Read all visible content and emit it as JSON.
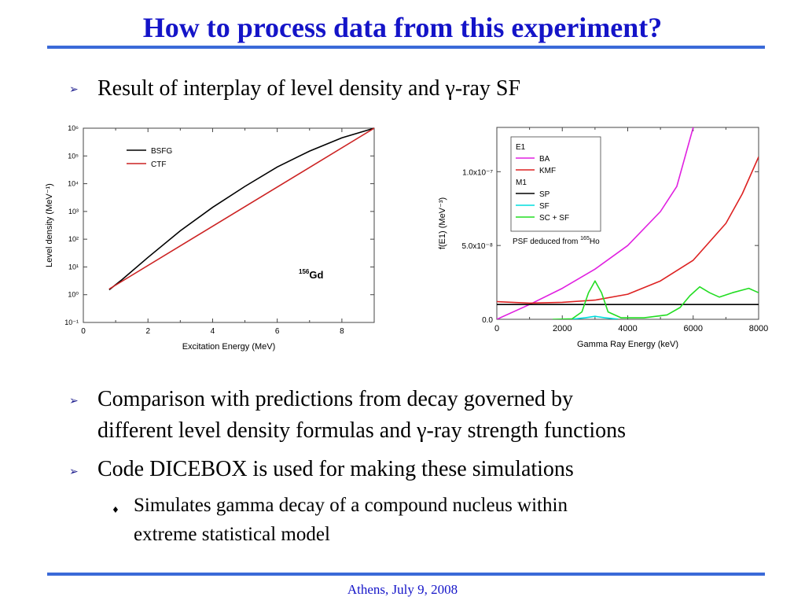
{
  "slide": {
    "title": "How to process data from this experiment?",
    "bullet1": "Result of interplay of level density and γ-ray SF",
    "bullet2_line1": "Comparison with predictions from decay governed by",
    "bullet2_line2": "different level density formulas and γ-ray strength functions",
    "bullet3": "Code DICEBOX is used for making these simulations",
    "sub1_line1": "Simulates gamma decay of a compound nucleus within",
    "sub1_line2": "extreme statistical model",
    "footer": "Athens, July 9, 2008",
    "bullet_icon": "arrow-bullet-icon",
    "sub_bullet_icon": "diamond-bullet-icon",
    "colors": {
      "title": "#1414c8",
      "rule": "#3a6ad8",
      "footer": "#1414c8"
    }
  },
  "chart_data": [
    {
      "type": "line",
      "xlabel": "Excitation Energy (MeV)",
      "ylabel": "Level density (MeV⁻¹)",
      "annotation": "156Gd",
      "xlim": [
        0,
        9
      ],
      "ylim": [
        0.1,
        1000000
      ],
      "yscale": "log",
      "x_ticks": [
        "0",
        "2",
        "4",
        "6",
        "8"
      ],
      "y_ticks": [
        "10⁻¹",
        "10⁰",
        "10¹",
        "10²",
        "10³",
        "10⁴",
        "10⁵",
        "10⁶"
      ],
      "legend_position": "top-left",
      "series": [
        {
          "name": "BSFG",
          "color": "#000000",
          "x": [
            0.8,
            1.2,
            2,
            3,
            4,
            5,
            6,
            7,
            8,
            9
          ],
          "y": [
            1.5,
            3.5,
            22,
            200,
            1400,
            8000,
            40000,
            150000,
            450000,
            1000000
          ]
        },
        {
          "name": "CTF",
          "color": "#cc2222",
          "x": [
            0.8,
            9
          ],
          "y": [
            1.6,
            1000000
          ]
        }
      ]
    },
    {
      "type": "line",
      "xlabel": "Gamma Ray Energy (keV)",
      "ylabel": "f(E1) (MeV⁻³)",
      "annotation": "PSF deduced from 165Ho",
      "xlim": [
        0,
        8000
      ],
      "ylim": [
        0,
        1.3e-07
      ],
      "x_ticks": [
        "0",
        "2000",
        "4000",
        "6000",
        "8000"
      ],
      "y_ticks": [
        "0.0",
        "5.0x10⁻⁸",
        "1.0x10⁻⁷"
      ],
      "legend_position": "top-left",
      "legend_groups": [
        "E1",
        "M1"
      ],
      "series": [
        {
          "name": "BA",
          "group": "E1",
          "color": "#e020e0",
          "x": [
            0,
            1000,
            2000,
            3000,
            4000,
            5000,
            5500,
            6000
          ],
          "y": [
            0,
            1e-08,
            2.1e-08,
            3.4e-08,
            5e-08,
            7.3e-08,
            9e-08,
            1.3e-07
          ]
        },
        {
          "name": "KMF",
          "group": "E1",
          "color": "#dd2222",
          "x": [
            0,
            1000,
            2000,
            3000,
            4000,
            5000,
            6000,
            7000,
            7500,
            8000
          ],
          "y": [
            1.2e-08,
            1.1e-08,
            1.15e-08,
            1.3e-08,
            1.7e-08,
            2.6e-08,
            4e-08,
            6.5e-08,
            8.5e-08,
            1.1e-07
          ]
        },
        {
          "name": "SP",
          "group": "M1",
          "color": "#000000",
          "x": [
            0,
            8000
          ],
          "y": [
            1e-08,
            1e-08
          ]
        },
        {
          "name": "SF",
          "group": "M1",
          "color": "#00dddd",
          "x": [
            2300,
            2700,
            3000,
            3300,
            3700
          ],
          "y": [
            1e-10,
            1e-09,
            2e-09,
            1e-09,
            1e-10
          ]
        },
        {
          "name": "SC + SF",
          "group": "M1",
          "color": "#22dd22",
          "x": [
            1700,
            2300,
            2600,
            2800,
            3000,
            3200,
            3400,
            3800,
            4500,
            5200,
            5600,
            5900,
            6200,
            6500,
            6800,
            7200,
            7700,
            8000
          ],
          "y": [
            0,
            3e-10,
            5e-09,
            1.8e-08,
            2.6e-08,
            1.8e-08,
            5e-09,
            1e-09,
            1e-09,
            3e-09,
            8e-09,
            1.6e-08,
            2.2e-08,
            1.8e-08,
            1.5e-08,
            1.8e-08,
            2.1e-08,
            1.8e-08
          ]
        }
      ]
    }
  ]
}
